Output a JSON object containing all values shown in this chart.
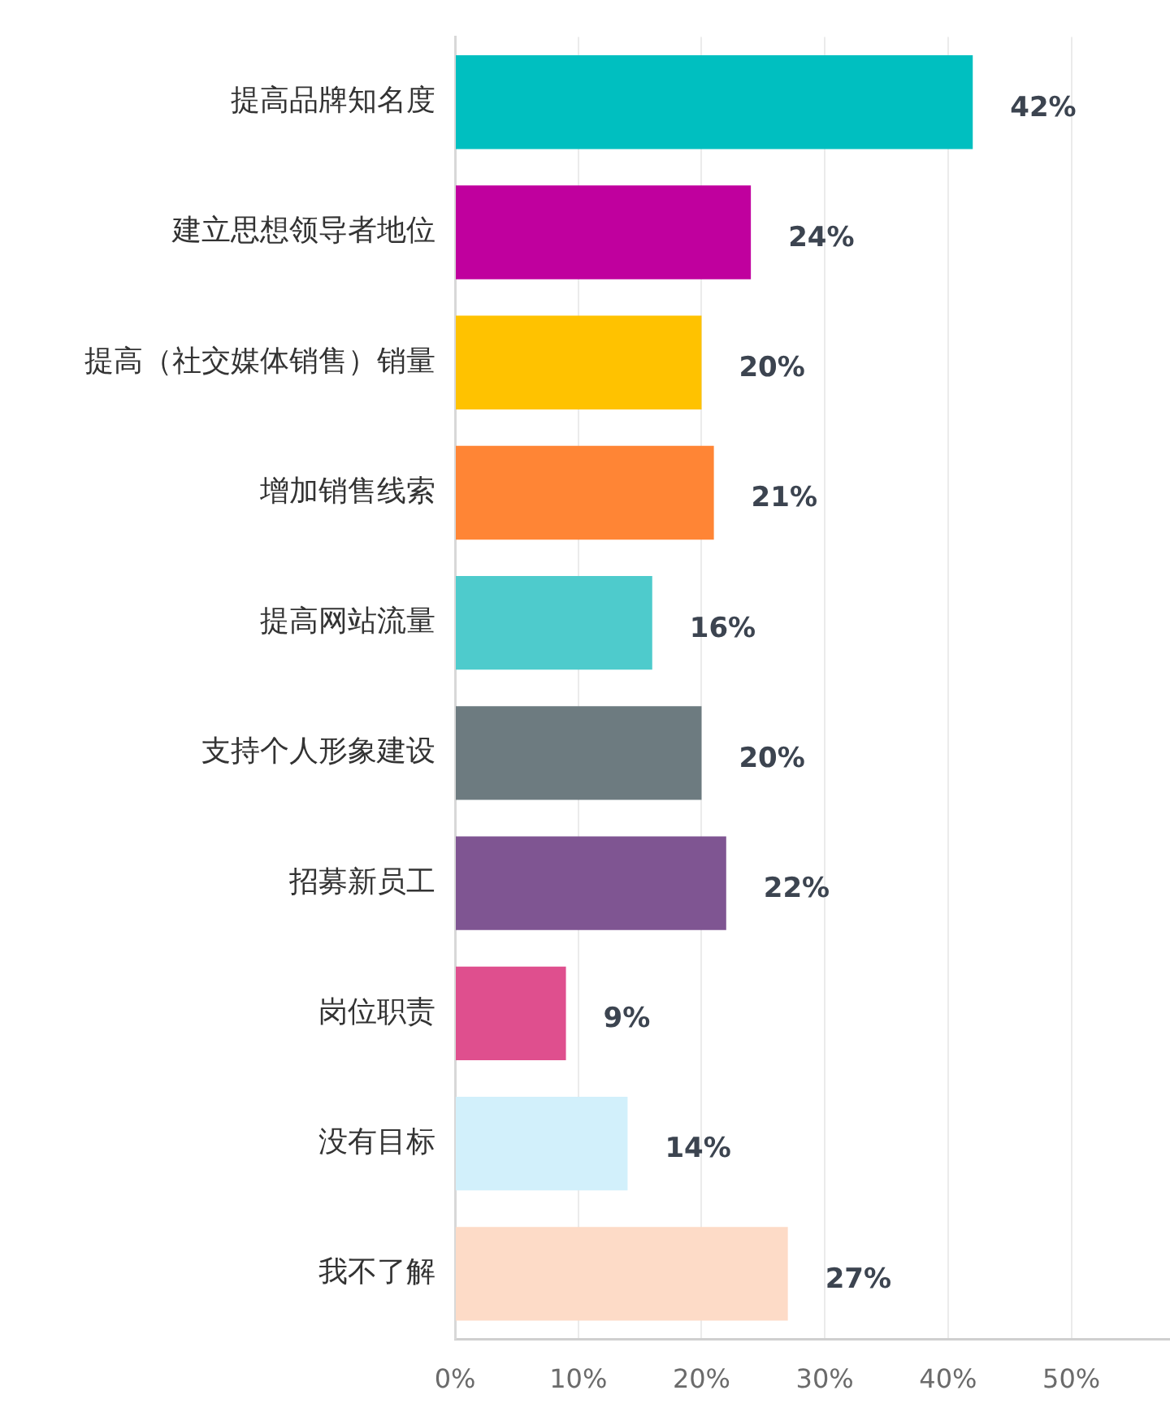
{
  "chart_data": {
    "type": "bar",
    "orientation": "horizontal",
    "categories": [
      "提高品牌知名度",
      "建立思想领导者地位",
      "提高（社交媒体销售）销量",
      "增加销售线索",
      "提高网站流量",
      "支持个人形象建设",
      "招募新员工",
      "岗位职责",
      "没有目标",
      "我不了解"
    ],
    "values": [
      42,
      24,
      20,
      21,
      16,
      20,
      22,
      9,
      14,
      27
    ],
    "value_labels": [
      "42%",
      "24%",
      "20%",
      "21%",
      "16%",
      "20%",
      "22%",
      "9%",
      "14%",
      "27%"
    ],
    "colors": [
      "#00bfc0",
      "#c0009e",
      "#ffc200",
      "#ff8535",
      "#4ecbcc",
      "#6d7b80",
      "#7f5592",
      "#df4f8e",
      "#d2f0fb",
      "#fddbc7"
    ],
    "xlim": [
      0,
      58
    ],
    "xticks": [
      {
        "value": 0,
        "label": "0%"
      },
      {
        "value": 10,
        "label": "10%"
      },
      {
        "value": 20,
        "label": "20%"
      },
      {
        "value": 30,
        "label": "30%"
      },
      {
        "value": 40,
        "label": "40%"
      },
      {
        "value": 50,
        "label": "50%"
      }
    ],
    "grid": "x"
  }
}
